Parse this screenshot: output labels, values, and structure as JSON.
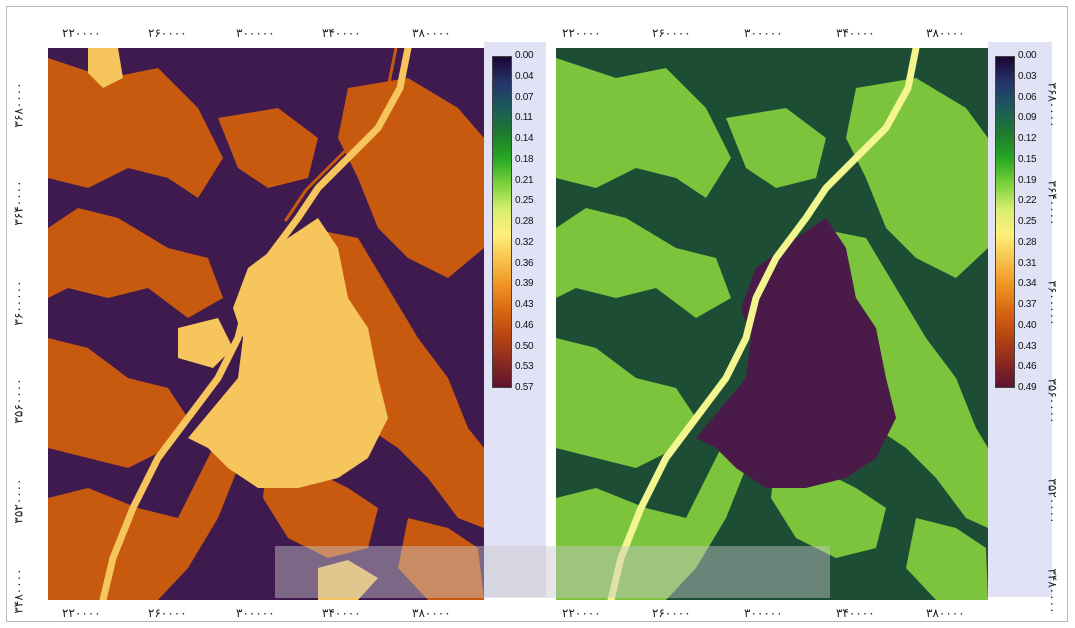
{
  "x_ticks": [
    "۲۲۰۰۰۰",
    "۲۶۰۰۰۰",
    "۳۰۰۰۰۰",
    "۳۴۰۰۰۰",
    "۳۸۰۰۰۰"
  ],
  "y_ticks": [
    "۳۶۸۰۰۰۰",
    "۳۶۴۰۰۰۰",
    "۳۶۰۰۰۰۰",
    "۳۵۶۰۰۰۰",
    "۳۵۲۰۰۰۰",
    "۳۴۸۰۰۰۰"
  ],
  "maps": [
    {
      "legend_labels": [
        "0.00",
        "0.04",
        "0.07",
        "0.11",
        "0.14",
        "0.18",
        "0.21",
        "0.25",
        "0.28",
        "0.32",
        "0.36",
        "0.39",
        "0.43",
        "0.46",
        "0.50",
        "0.53",
        "0.57"
      ],
      "palette": {
        "dark": "#3f1a4e",
        "mid": "#c85a10",
        "light": "#f6c55c"
      }
    },
    {
      "legend_labels": [
        "0.00",
        "0.03",
        "0.06",
        "0.09",
        "0.12",
        "0.15",
        "0.19",
        "0.22",
        "0.25",
        "0.28",
        "0.31",
        "0.34",
        "0.37",
        "0.40",
        "0.43",
        "0.46",
        "0.49"
      ],
      "palette": {
        "dark": "#1e4d36",
        "mid": "#7dc43d",
        "light": "#f3f58f"
      }
    }
  ],
  "legend_gradient": [
    "#1a0530",
    "#25336c",
    "#1c5a5a",
    "#1f7a2e",
    "#25a823",
    "#7ad13a",
    "#d7ee6e",
    "#ffef7a",
    "#f6c14c",
    "#ef9322",
    "#d86813",
    "#b84512",
    "#8c2a20",
    "#5c1430"
  ],
  "inner_labels": {
    "0": [
      "0.57"
    ],
    "1": [
      "0.49"
    ]
  }
}
